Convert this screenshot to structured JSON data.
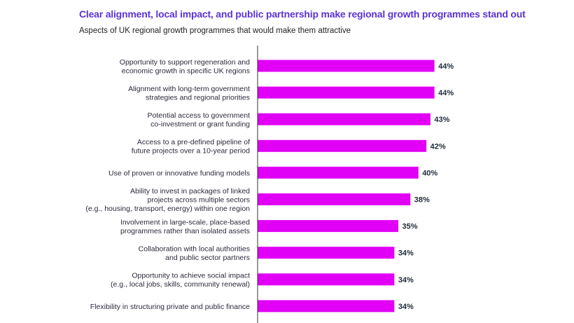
{
  "chart_data": {
    "type": "bar",
    "orientation": "horizontal",
    "title": "Clear alignment, local impact, and public partnership make regional growth programmes stand out",
    "subtitle": "Aspects of UK regional growth programmes that would make them attractive",
    "categories": [
      [
        "Opportunity to support regeneration and",
        "economic growth in specific UK regions"
      ],
      [
        "Alignment with long-term government",
        "strategies and regional priorities"
      ],
      [
        "Potential access to government",
        "co-investment or grant funding"
      ],
      [
        "Access to a pre-defined pipeline of",
        "future projects over a 10-year period"
      ],
      [
        "Use of proven or innovative funding models"
      ],
      [
        "Ability to invest in packages of linked",
        "projects across multiple sectors",
        "(e.g., housing, transport, energy) within one region"
      ],
      [
        "Involvement in large-scale, place-based",
        "programmes rather than isolated assets"
      ],
      [
        "Collaboration with local authorities",
        "and public sector partners"
      ],
      [
        "Opportunity to achieve social impact",
        "(e.g., local jobs, skills, community renewal)"
      ],
      [
        "Flexibility in structuring private and public finance"
      ]
    ],
    "values": [
      44,
      44,
      43,
      42,
      40,
      38,
      35,
      34,
      34,
      34
    ],
    "value_labels": [
      "44%",
      "44%",
      "43%",
      "42%",
      "40%",
      "38%",
      "35%",
      "34%",
      "34%",
      "34%"
    ],
    "unit": "%",
    "grid": false,
    "legend": "none",
    "bar_color": "#e100f5",
    "title_color": "#5b33d6"
  }
}
